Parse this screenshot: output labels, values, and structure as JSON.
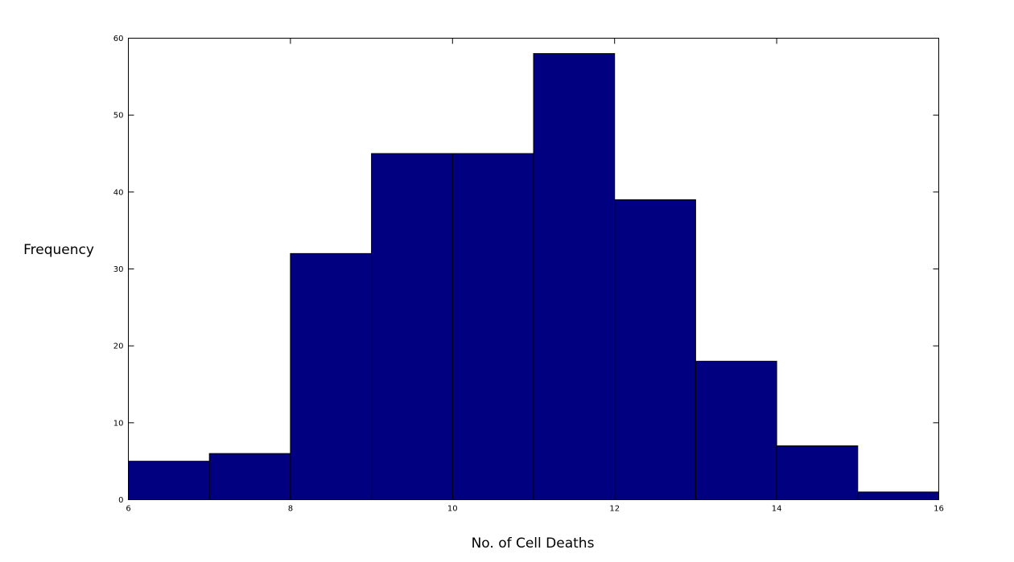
{
  "chart_data": {
    "type": "bar",
    "title": "",
    "xlabel": "No. of Cell Deaths",
    "ylabel": "Frequency",
    "xlim": [
      6,
      16
    ],
    "ylim": [
      0,
      60
    ],
    "x_ticks": [
      6,
      8,
      10,
      12,
      14,
      16
    ],
    "y_ticks": [
      0,
      10,
      20,
      30,
      40,
      50,
      60
    ],
    "bins": [
      {
        "x0": 6,
        "x1": 7,
        "value": 5
      },
      {
        "x0": 7,
        "x1": 8,
        "value": 6
      },
      {
        "x0": 8,
        "x1": 9,
        "value": 32
      },
      {
        "x0": 9,
        "x1": 10,
        "value": 45
      },
      {
        "x0": 10,
        "x1": 11,
        "value": 45
      },
      {
        "x0": 11,
        "x1": 12,
        "value": 58
      },
      {
        "x0": 12,
        "x1": 13,
        "value": 39
      },
      {
        "x0": 13,
        "x1": 14,
        "value": 18
      },
      {
        "x0": 14,
        "x1": 15,
        "value": 7
      },
      {
        "x0": 15,
        "x1": 16,
        "value": 1
      }
    ],
    "bar_color": "#000080",
    "edge_color": "#000000",
    "grid": false,
    "legend": "none"
  }
}
